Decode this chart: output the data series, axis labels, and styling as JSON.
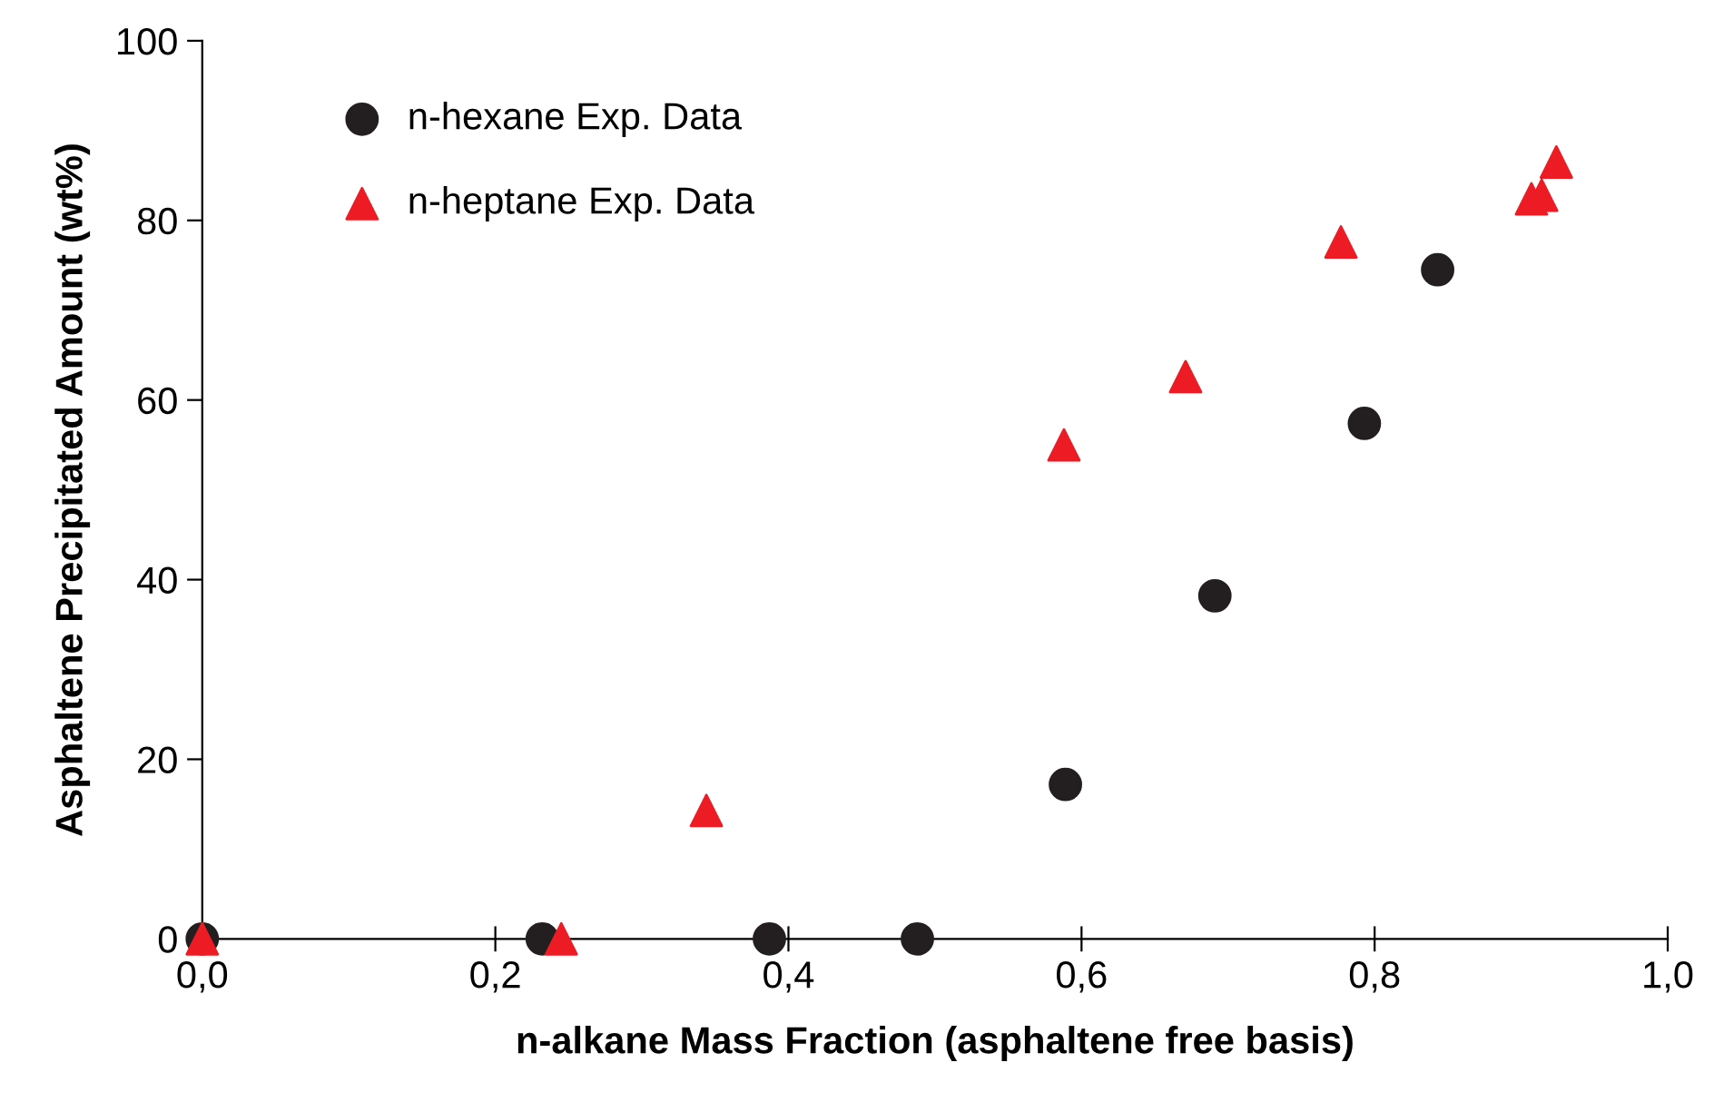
{
  "chart_data": {
    "type": "scatter",
    "xlabel": "n-alkane Mass Fraction (asphaltene free basis)",
    "ylabel": "Asphaltene Precipitated Amount (wt%)",
    "xlim": [
      0,
      1
    ],
    "ylim": [
      0,
      100
    ],
    "xticks": [
      {
        "value": 0,
        "label": "0,0"
      },
      {
        "value": 0.2,
        "label": "0,2"
      },
      {
        "value": 0.4,
        "label": "0,4"
      },
      {
        "value": 0.6,
        "label": "0,6"
      },
      {
        "value": 0.8,
        "label": "0,8"
      },
      {
        "value": 1,
        "label": "1,0"
      }
    ],
    "yticks": [
      0,
      20,
      40,
      60,
      80,
      100
    ],
    "grid": false,
    "legend": "top left",
    "series": [
      {
        "name": "n-hexane Exp. Data",
        "color": "#231f20",
        "marker": "circle",
        "x": [
          0,
          0.232,
          0.387,
          0.488,
          0.589,
          0.691,
          0.793,
          0.843
        ],
        "values": [
          0,
          0,
          0,
          0,
          17.2,
          38.2,
          57.4,
          74.5
        ]
      },
      {
        "name": "n-heptane Exp. Data",
        "color": "#ed1c24",
        "marker": "triangle",
        "x": [
          0,
          0.245,
          0.344,
          0.588,
          0.671,
          0.777,
          0.924,
          0.907,
          0.914
        ],
        "values": [
          0,
          0,
          14.3,
          55,
          62.6,
          77.6,
          86.5,
          82.4,
          82.8
        ]
      }
    ]
  }
}
